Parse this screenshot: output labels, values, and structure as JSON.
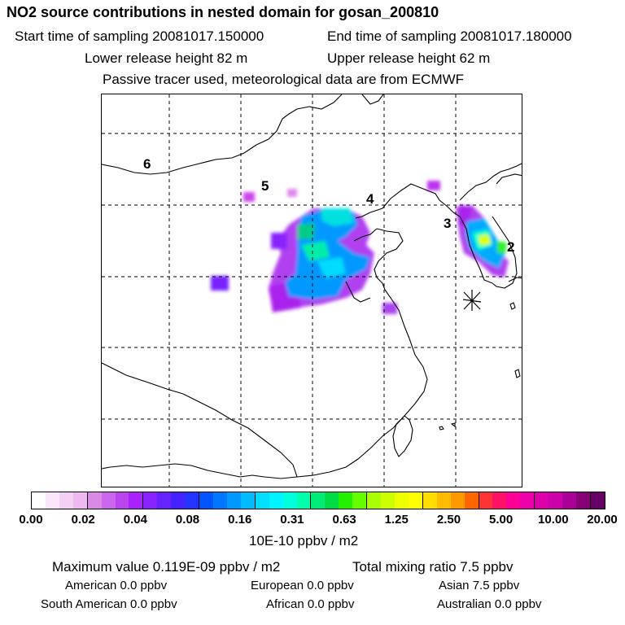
{
  "title": "NO2 source contributions in nested domain for gosan_200810",
  "header": {
    "start_time": "Start time of sampling 20081017.150000",
    "end_time": "End time of sampling 20081017.180000",
    "lower_height": "Lower release height   82 m",
    "upper_height": "Upper release height   62 m",
    "tracer_note": "Passive tracer used, meteorological data are from ECMWF"
  },
  "map": {
    "region_labels": [
      "6",
      "5",
      "4",
      "3",
      "2"
    ],
    "receptor_marker": "gosan-star"
  },
  "colorbar": {
    "ticks": [
      "0.00",
      "0.02",
      "0.04",
      "0.08",
      "0.16",
      "0.31",
      "0.63",
      "1.25",
      "2.50",
      "5.00",
      "10.00",
      "20.00"
    ],
    "colors": [
      "#ffffff",
      "#fbe6fb",
      "#f5d0f5",
      "#eeb8f0",
      "#d88ae6",
      "#cc66ee",
      "#bb44ee",
      "#aa22ff",
      "#8822ff",
      "#6622ff",
      "#4422ff",
      "#2233ff",
      "#0055ff",
      "#0077ff",
      "#0099ff",
      "#00bbff",
      "#00ddff",
      "#00f4ff",
      "#00ffdd",
      "#00ffaa",
      "#00ee77",
      "#00dd44",
      "#22ee00",
      "#66ff00",
      "#aaff00",
      "#ccff00",
      "#eeff00",
      "#ffff00",
      "#ffdd00",
      "#ffbb00",
      "#ff9900",
      "#ff6600",
      "#ff3333",
      "#ff1166",
      "#ff0099",
      "#ee00aa",
      "#dd00aa",
      "#cc00aa",
      "#aa0099",
      "#880077",
      "#660066"
    ],
    "unit": "10E-10 ppbv / m2"
  },
  "footer": {
    "max_value": "Maximum value  0.119E-09 ppbv / m2",
    "total_mixing": "Total mixing ratio       7.5 ppbv",
    "american": "American         0.0 ppbv",
    "european": "European        0.0 ppbv",
    "asian": "Asian       7.5 ppbv",
    "south_american": "South American         0.0 ppbv",
    "african": "African         0.0 ppbv",
    "australian": "Australian         0.0 ppbv"
  }
}
